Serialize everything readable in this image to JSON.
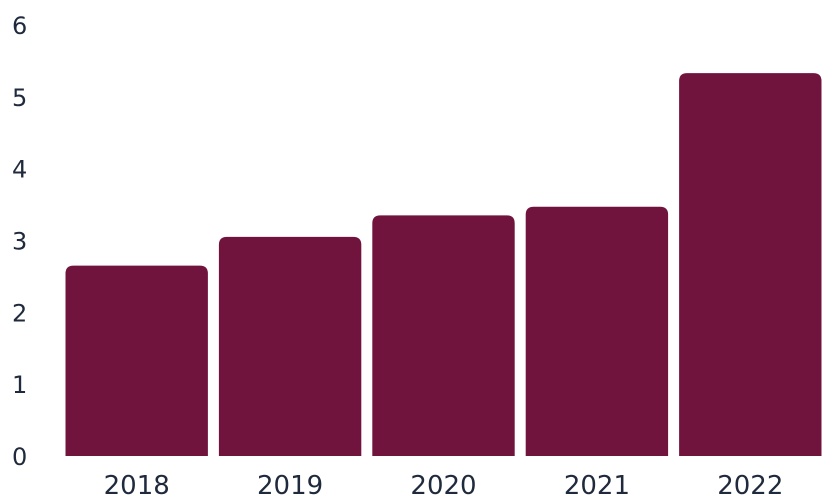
{
  "chart_data": {
    "type": "bar",
    "title": "",
    "xlabel": "",
    "ylabel": "",
    "categories": [
      "2018",
      "2019",
      "2020",
      "2021",
      "2022"
    ],
    "values": [
      2.65,
      3.05,
      3.35,
      3.47,
      5.33
    ],
    "ylim": [
      0,
      6
    ],
    "yticks": [
      "0",
      "1",
      "2",
      "3",
      "4",
      "5",
      "6"
    ],
    "grid": false,
    "legend": "none",
    "colors": {
      "bar": "#71143d",
      "text": "#1f2a3c",
      "background": "#ffffff"
    }
  }
}
